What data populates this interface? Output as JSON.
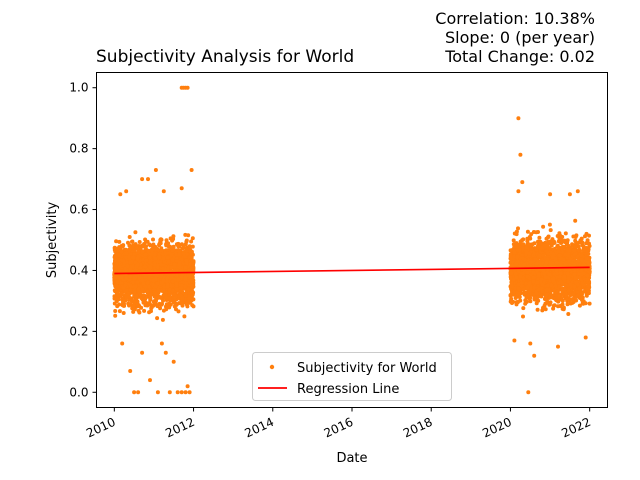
{
  "chart_data": {
    "type": "scatter",
    "title": "Subjectivity Analysis for World",
    "stats": {
      "correlation": "Correlation: 10.38%",
      "slope": "Slope: 0 (per year)",
      "total_change": "Total Change: 0.02"
    },
    "xlabel": "Date",
    "ylabel": "Subjectivity",
    "xlim": [
      2009.55,
      2022.45
    ],
    "ylim": [
      -0.05,
      1.05
    ],
    "x_ticks": [
      "2010",
      "2012",
      "2014",
      "2016",
      "2018",
      "2020",
      "2022"
    ],
    "y_ticks": [
      "0.0",
      "0.2",
      "0.4",
      "0.6",
      "0.8",
      "1.0"
    ],
    "grid": false,
    "legend_position": "bottom-center",
    "series": [
      {
        "name": "Subjectivity for World",
        "kind": "points",
        "color": "#ff7f0e",
        "clusters": [
          {
            "x_range": [
              2010.0,
              2012.0
            ],
            "y_mean": 0.39,
            "y_spread": 0.09
          },
          {
            "x_range": [
              2020.0,
              2022.0
            ],
            "y_mean": 0.4,
            "y_spread": 0.09
          }
        ],
        "notable_points": [
          {
            "x": 2011.7,
            "y": 1.0
          },
          {
            "x": 2011.75,
            "y": 1.0
          },
          {
            "x": 2011.8,
            "y": 1.0
          },
          {
            "x": 2011.85,
            "y": 1.0
          },
          {
            "x": 2011.05,
            "y": 0.73
          },
          {
            "x": 2011.95,
            "y": 0.73
          },
          {
            "x": 2010.7,
            "y": 0.7
          },
          {
            "x": 2010.85,
            "y": 0.7
          },
          {
            "x": 2010.3,
            "y": 0.66
          },
          {
            "x": 2010.15,
            "y": 0.65
          },
          {
            "x": 2011.25,
            "y": 0.66
          },
          {
            "x": 2011.7,
            "y": 0.67
          },
          {
            "x": 2020.2,
            "y": 0.9
          },
          {
            "x": 2020.25,
            "y": 0.78
          },
          {
            "x": 2020.3,
            "y": 0.69
          },
          {
            "x": 2020.2,
            "y": 0.66
          },
          {
            "x": 2021.0,
            "y": 0.65
          },
          {
            "x": 2021.7,
            "y": 0.66
          },
          {
            "x": 2021.5,
            "y": 0.65
          },
          {
            "x": 2020.5,
            "y": 0.16
          },
          {
            "x": 2020.6,
            "y": 0.12
          },
          {
            "x": 2021.2,
            "y": 0.15
          },
          {
            "x": 2020.1,
            "y": 0.17
          },
          {
            "x": 2021.9,
            "y": 0.18
          },
          {
            "x": 2020.45,
            "y": 0.0
          },
          {
            "x": 2010.5,
            "y": 0.0
          },
          {
            "x": 2010.6,
            "y": 0.0
          },
          {
            "x": 2011.1,
            "y": 0.0
          },
          {
            "x": 2011.4,
            "y": 0.0
          },
          {
            "x": 2011.6,
            "y": 0.0
          },
          {
            "x": 2011.7,
            "y": 0.0
          },
          {
            "x": 2011.8,
            "y": 0.0
          },
          {
            "x": 2011.9,
            "y": 0.0
          },
          {
            "x": 2010.4,
            "y": 0.07
          },
          {
            "x": 2010.9,
            "y": 0.04
          },
          {
            "x": 2011.85,
            "y": 0.02
          },
          {
            "x": 2010.2,
            "y": 0.16
          },
          {
            "x": 2010.7,
            "y": 0.13
          },
          {
            "x": 2011.3,
            "y": 0.13
          },
          {
            "x": 2011.5,
            "y": 0.1
          },
          {
            "x": 2011.2,
            "y": 0.16
          }
        ]
      },
      {
        "name": "Regression Line",
        "kind": "line",
        "color": "#ff0000",
        "x": [
          2010.0,
          2022.0
        ],
        "y": [
          0.39,
          0.41
        ]
      }
    ]
  }
}
